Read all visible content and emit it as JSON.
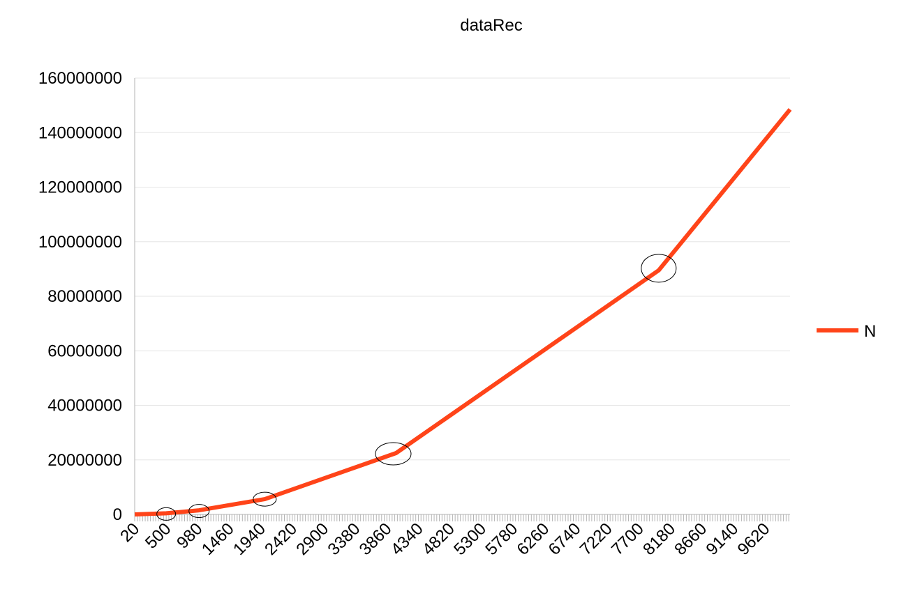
{
  "chart_data": {
    "type": "line",
    "title": "dataRec",
    "xlabel": "",
    "ylabel": "",
    "ylim": [
      0,
      160000000
    ],
    "yticks": [
      "0",
      "20000000",
      "40000000",
      "60000000",
      "80000000",
      "100000000",
      "120000000",
      "140000000",
      "160000000"
    ],
    "xlim": [
      20,
      10000
    ],
    "xtick_labels": [
      "20",
      "500",
      "980",
      "1460",
      "1940",
      "2420",
      "2900",
      "3380",
      "3860",
      "4340",
      "4820",
      "5300",
      "5780",
      "6260",
      "6740",
      "7220",
      "7700",
      "8180",
      "8660",
      "9140",
      "9620"
    ],
    "grid": "horizontal",
    "legend_position": "right",
    "series": [
      {
        "name": "N",
        "color": "#ff4419",
        "x": [
          20,
          500,
          1000,
          2000,
          4000,
          8000,
          10000
        ],
        "values": [
          0,
          400000,
          1500000,
          5600000,
          22500000,
          89500000,
          148500000
        ]
      }
    ],
    "annotations": [
      {
        "shape": "ellipse",
        "x": 500,
        "y": 400000
      },
      {
        "shape": "ellipse",
        "x": 1000,
        "y": 1500000
      },
      {
        "shape": "ellipse",
        "x": 2000,
        "y": 5600000
      },
      {
        "shape": "ellipse",
        "x": 4000,
        "y": 22500000
      },
      {
        "shape": "ellipse",
        "x": 8000,
        "y": 89500000
      }
    ]
  }
}
